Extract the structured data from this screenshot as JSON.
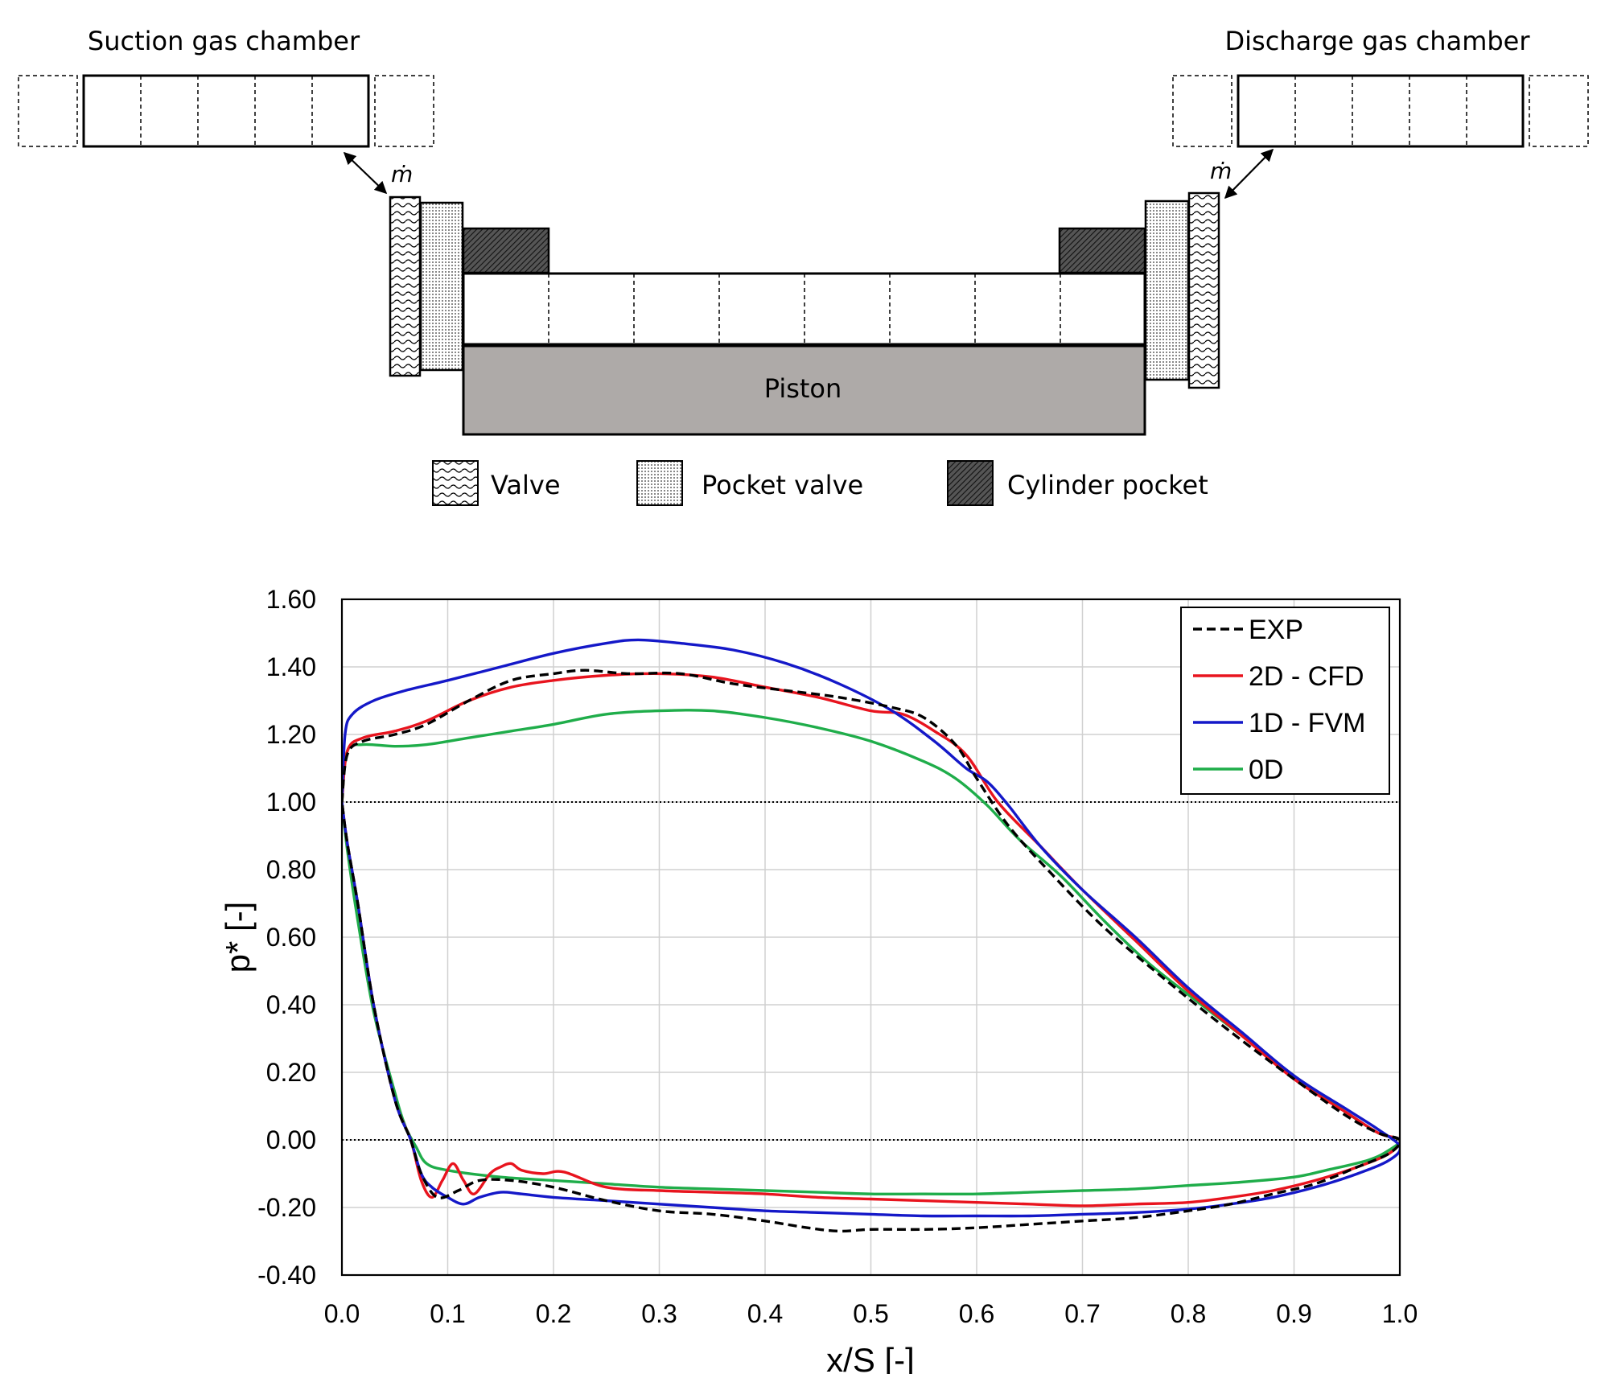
{
  "diagram": {
    "suction_label": "Suction gas chamber",
    "discharge_label": "Discharge gas chamber",
    "mdot_left": "ṁ",
    "mdot_right": "ṁ",
    "piston_label": "Piston",
    "legend": [
      {
        "key": "valve",
        "label": "Valve"
      },
      {
        "key": "pocket_valve",
        "label": "Pocket valve"
      },
      {
        "key": "cylinder_pocket",
        "label": "Cylinder pocket"
      }
    ]
  },
  "chart_data": {
    "type": "line",
    "title": "",
    "xlabel": "x/S [-]",
    "ylabel": "p* [-]",
    "xlim": [
      0,
      1.0
    ],
    "ylim": [
      -0.4,
      1.6
    ],
    "xticks": [
      "0.0",
      "0.1",
      "0.2",
      "0.3",
      "0.4",
      "0.5",
      "0.6",
      "0.7",
      "0.8",
      "0.9",
      "1.0"
    ],
    "yticks": [
      "-0.40",
      "-0.20",
      "0.00",
      "0.20",
      "0.40",
      "0.60",
      "0.80",
      "1.00",
      "1.20",
      "1.40",
      "1.60"
    ],
    "grid": true,
    "reference_lines": [
      1.0,
      0.0
    ],
    "legend_position": "top-right",
    "series": [
      {
        "name": "EXP",
        "color": "#000000",
        "dash": true,
        "x": [
          0,
          0.005,
          0.02,
          0.05,
          0.08,
          0.12,
          0.16,
          0.2,
          0.23,
          0.27,
          0.32,
          0.37,
          0.42,
          0.47,
          0.52,
          0.55,
          0.58,
          0.6,
          0.63,
          0.67,
          0.72,
          0.78,
          0.84,
          0.9,
          0.95,
          0.98,
          1.0,
          0.99,
          0.96,
          0.92,
          0.88,
          0.84,
          0.8,
          0.75,
          0.7,
          0.65,
          0.6,
          0.55,
          0.5,
          0.47,
          0.44,
          0.4,
          0.35,
          0.3,
          0.25,
          0.2,
          0.16,
          0.13,
          0.11,
          0.09,
          0.075,
          0.065,
          0.05,
          0.03,
          0.015,
          0.005,
          0
        ],
        "y": [
          1.0,
          1.14,
          1.18,
          1.2,
          1.23,
          1.3,
          1.36,
          1.38,
          1.39,
          1.38,
          1.38,
          1.35,
          1.33,
          1.31,
          1.28,
          1.25,
          1.17,
          1.07,
          0.93,
          0.79,
          0.63,
          0.47,
          0.32,
          0.18,
          0.07,
          0.02,
          0.0,
          -0.04,
          -0.08,
          -0.13,
          -0.16,
          -0.19,
          -0.21,
          -0.23,
          -0.24,
          -0.25,
          -0.26,
          -0.265,
          -0.265,
          -0.27,
          -0.26,
          -0.24,
          -0.22,
          -0.21,
          -0.18,
          -0.14,
          -0.12,
          -0.12,
          -0.15,
          -0.17,
          -0.1,
          0.0,
          0.12,
          0.4,
          0.7,
          0.88,
          1.0
        ]
      },
      {
        "name": "2D - CFD",
        "color": "#e8141e",
        "dash": false,
        "x": [
          0,
          0.005,
          0.02,
          0.05,
          0.08,
          0.12,
          0.16,
          0.2,
          0.25,
          0.3,
          0.35,
          0.4,
          0.45,
          0.5,
          0.53,
          0.56,
          0.59,
          0.62,
          0.66,
          0.7,
          0.75,
          0.8,
          0.85,
          0.9,
          0.95,
          0.98,
          1.0,
          0.99,
          0.96,
          0.92,
          0.88,
          0.84,
          0.8,
          0.75,
          0.7,
          0.65,
          0.6,
          0.55,
          0.5,
          0.45,
          0.4,
          0.35,
          0.3,
          0.25,
          0.21,
          0.19,
          0.17,
          0.16,
          0.15,
          0.14,
          0.125,
          0.115,
          0.105,
          0.095,
          0.085,
          0.075,
          0.065,
          0.05,
          0.03,
          0.015,
          0.005,
          0
        ],
        "y": [
          1.0,
          1.15,
          1.19,
          1.21,
          1.24,
          1.3,
          1.34,
          1.36,
          1.375,
          1.38,
          1.37,
          1.34,
          1.31,
          1.27,
          1.26,
          1.21,
          1.14,
          1.0,
          0.87,
          0.74,
          0.59,
          0.44,
          0.31,
          0.18,
          0.08,
          0.02,
          0.0,
          -0.04,
          -0.08,
          -0.12,
          -0.15,
          -0.17,
          -0.185,
          -0.19,
          -0.195,
          -0.19,
          -0.185,
          -0.18,
          -0.175,
          -0.17,
          -0.16,
          -0.155,
          -0.15,
          -0.14,
          -0.095,
          -0.1,
          -0.09,
          -0.07,
          -0.08,
          -0.1,
          -0.16,
          -0.12,
          -0.07,
          -0.12,
          -0.17,
          -0.12,
          0.0,
          0.12,
          0.4,
          0.7,
          0.88,
          1.0
        ]
      },
      {
        "name": "1D - FVM",
        "color": "#1418c8",
        "dash": false,
        "x": [
          0,
          0.003,
          0.01,
          0.03,
          0.06,
          0.1,
          0.15,
          0.2,
          0.25,
          0.28,
          0.32,
          0.37,
          0.42,
          0.47,
          0.52,
          0.56,
          0.59,
          0.61,
          0.63,
          0.66,
          0.7,
          0.75,
          0.8,
          0.85,
          0.9,
          0.95,
          0.98,
          1.0,
          0.99,
          0.96,
          0.92,
          0.88,
          0.84,
          0.8,
          0.75,
          0.7,
          0.65,
          0.6,
          0.55,
          0.5,
          0.45,
          0.4,
          0.35,
          0.3,
          0.25,
          0.2,
          0.17,
          0.15,
          0.13,
          0.115,
          0.1,
          0.085,
          0.075,
          0.065,
          0.05,
          0.03,
          0.015,
          0.005,
          0
        ],
        "y": [
          1.0,
          1.2,
          1.26,
          1.3,
          1.33,
          1.36,
          1.4,
          1.44,
          1.47,
          1.48,
          1.47,
          1.45,
          1.41,
          1.35,
          1.27,
          1.18,
          1.1,
          1.06,
          0.99,
          0.87,
          0.74,
          0.6,
          0.45,
          0.32,
          0.19,
          0.09,
          0.03,
          -0.02,
          -0.06,
          -0.1,
          -0.14,
          -0.17,
          -0.19,
          -0.205,
          -0.215,
          -0.22,
          -0.225,
          -0.225,
          -0.225,
          -0.22,
          -0.215,
          -0.21,
          -0.2,
          -0.19,
          -0.18,
          -0.17,
          -0.16,
          -0.155,
          -0.17,
          -0.19,
          -0.17,
          -0.14,
          -0.1,
          0.0,
          0.12,
          0.4,
          0.7,
          0.88,
          1.0
        ]
      },
      {
        "name": "0D",
        "color": "#1fad4a",
        "dash": false,
        "x": [
          0,
          0.005,
          0.02,
          0.05,
          0.08,
          0.12,
          0.16,
          0.2,
          0.25,
          0.3,
          0.35,
          0.4,
          0.45,
          0.5,
          0.55,
          0.58,
          0.61,
          0.64,
          0.68,
          0.72,
          0.76,
          0.8,
          0.85,
          0.9,
          0.95,
          0.98,
          1.0,
          0.99,
          0.97,
          0.93,
          0.9,
          0.85,
          0.8,
          0.75,
          0.7,
          0.65,
          0.6,
          0.55,
          0.5,
          0.45,
          0.4,
          0.35,
          0.3,
          0.25,
          0.2,
          0.15,
          0.1,
          0.08,
          0.07,
          0.06,
          0.05,
          0.03,
          0.015,
          0.005,
          0
        ],
        "y": [
          1.0,
          1.15,
          1.17,
          1.165,
          1.17,
          1.19,
          1.21,
          1.23,
          1.26,
          1.27,
          1.27,
          1.25,
          1.22,
          1.18,
          1.12,
          1.07,
          0.99,
          0.89,
          0.78,
          0.65,
          0.53,
          0.43,
          0.31,
          0.19,
          0.08,
          0.02,
          0.0,
          -0.03,
          -0.06,
          -0.09,
          -0.11,
          -0.125,
          -0.135,
          -0.145,
          -0.15,
          -0.155,
          -0.16,
          -0.16,
          -0.16,
          -0.155,
          -0.15,
          -0.145,
          -0.14,
          -0.13,
          -0.12,
          -0.11,
          -0.09,
          -0.07,
          -0.02,
          0.04,
          0.14,
          0.38,
          0.65,
          0.86,
          1.0
        ]
      }
    ]
  }
}
